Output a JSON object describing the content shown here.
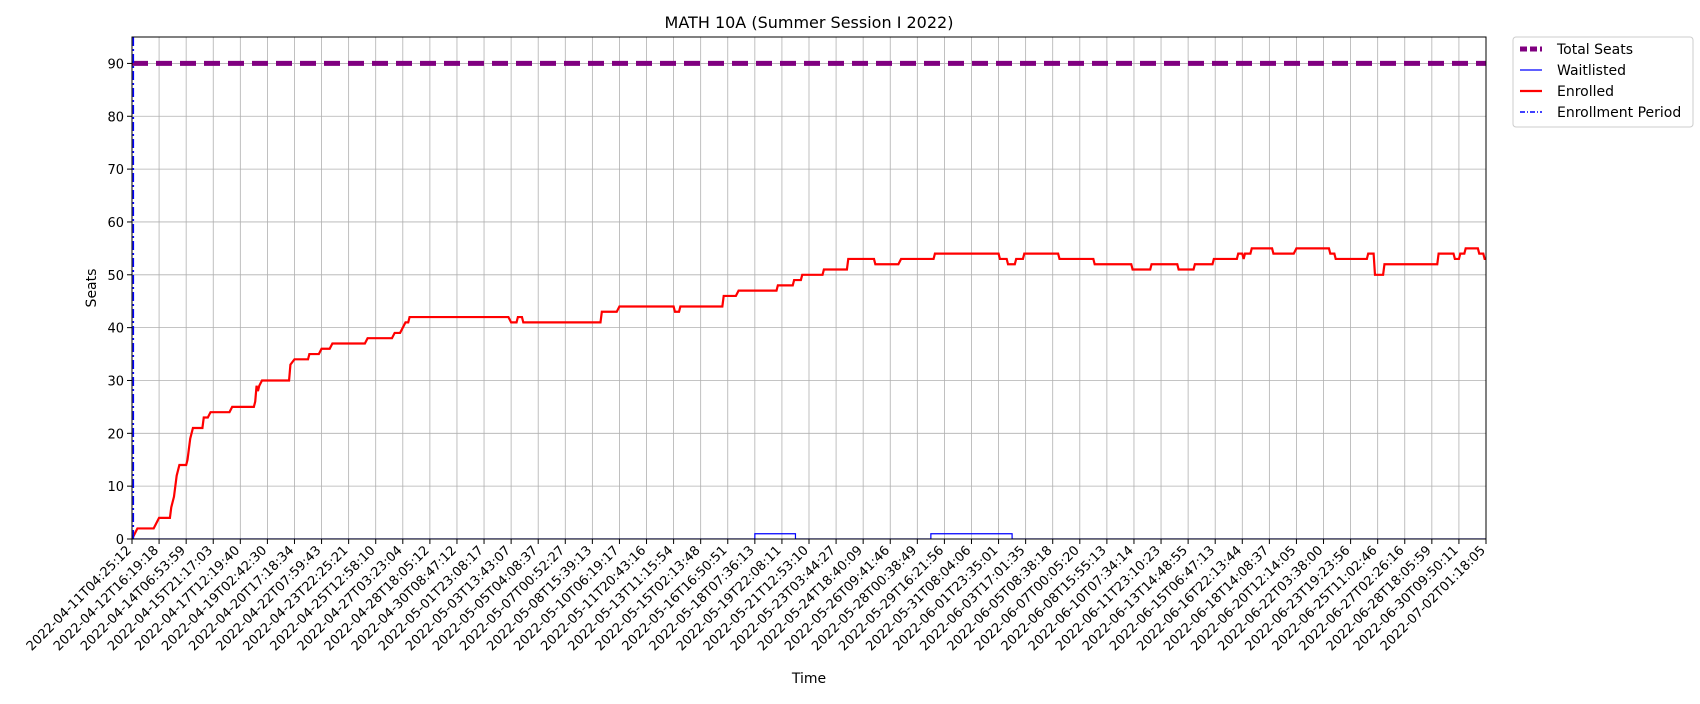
{
  "chart_data": {
    "type": "line",
    "title": "MATH 10A (Summer Session I 2022)",
    "xlabel": "Time",
    "ylabel": "Seats",
    "ylim": [
      0,
      95
    ],
    "yticks": [
      0,
      10,
      20,
      30,
      40,
      50,
      60,
      70,
      80,
      90
    ],
    "grid": true,
    "legend_position": "outside-top-right",
    "x_tick_labels": [
      "2022-04-11T04:25:12",
      "2022-04-12T16:19:18",
      "2022-04-14T06:53:59",
      "2022-04-15T21:17:03",
      "2022-04-17T12:19:40",
      "2022-04-19T02:42:30",
      "2022-04-20T17:18:34",
      "2022-04-22T07:59:43",
      "2022-04-23T22:25:21",
      "2022-04-25T12:58:10",
      "2022-04-27T03:23:04",
      "2022-04-28T18:05:12",
      "2022-04-30T08:47:12",
      "2022-05-01T23:08:17",
      "2022-05-03T13:43:07",
      "2022-05-05T04:08:37",
      "2022-05-07T00:52:27",
      "2022-05-08T15:39:13",
      "2022-05-10T06:19:17",
      "2022-05-11T20:43:16",
      "2022-05-13T11:15:54",
      "2022-05-15T02:13:48",
      "2022-05-16T16:50:51",
      "2022-05-18T07:36:13",
      "2022-05-19T22:08:11",
      "2022-05-21T12:53:10",
      "2022-05-23T03:44:27",
      "2022-05-24T18:40:09",
      "2022-05-26T09:41:46",
      "2022-05-28T00:38:49",
      "2022-05-29T16:21:56",
      "2022-05-31T08:04:06",
      "2022-06-01T23:35:01",
      "2022-06-03T17:01:35",
      "2022-06-05T08:38:18",
      "2022-06-07T00:05:20",
      "2022-06-08T15:55:13",
      "2022-06-10T07:34:14",
      "2022-06-11T23:10:23",
      "2022-06-13T14:48:55",
      "2022-06-15T06:47:13",
      "2022-06-16T22:13:44",
      "2022-06-18T14:08:37",
      "2022-06-20T12:14:05",
      "2022-06-22T03:38:00",
      "2022-06-23T19:23:56",
      "2022-06-25T11:02:46",
      "2022-06-27T02:26:16",
      "2022-06-28T18:05:59",
      "2022-06-30T09:50:11",
      "2022-07-02T01:18:05"
    ],
    "series": [
      {
        "name": "Total Seats",
        "color": "#800080",
        "style": "dashed-thick",
        "points": [
          [
            0,
            90
          ],
          [
            50.0,
            90
          ]
        ]
      },
      {
        "name": "Waitlisted",
        "color": "#0000ff",
        "style": "thin-step",
        "points": [
          [
            0,
            0
          ],
          [
            23.0,
            0
          ],
          [
            23.0,
            1
          ],
          [
            24.5,
            1
          ],
          [
            24.5,
            0
          ],
          [
            29.5,
            0
          ],
          [
            29.5,
            1
          ],
          [
            32.5,
            1
          ],
          [
            32.5,
            0
          ],
          [
            50.0,
            0
          ]
        ]
      },
      {
        "name": "Enrolled",
        "color": "#ff0000",
        "style": "step",
        "points": [
          [
            0.0,
            0
          ],
          [
            0.1,
            1
          ],
          [
            0.2,
            2
          ],
          [
            0.8,
            2
          ],
          [
            0.9,
            3
          ],
          [
            1.0,
            4
          ],
          [
            1.4,
            4
          ],
          [
            1.45,
            6
          ],
          [
            1.5,
            7
          ],
          [
            1.55,
            8
          ],
          [
            1.6,
            10
          ],
          [
            1.65,
            12
          ],
          [
            1.75,
            14
          ],
          [
            2.0,
            14
          ],
          [
            2.05,
            15
          ],
          [
            2.1,
            17
          ],
          [
            2.15,
            19
          ],
          [
            2.25,
            21
          ],
          [
            2.6,
            21
          ],
          [
            2.65,
            23
          ],
          [
            2.8,
            23
          ],
          [
            2.9,
            24
          ],
          [
            3.6,
            24
          ],
          [
            3.7,
            25
          ],
          [
            4.5,
            25
          ],
          [
            4.55,
            26
          ],
          [
            4.6,
            29
          ],
          [
            4.65,
            28
          ],
          [
            4.7,
            29
          ],
          [
            4.8,
            30
          ],
          [
            5.8,
            30
          ],
          [
            5.85,
            33
          ],
          [
            6.0,
            34
          ],
          [
            6.5,
            34
          ],
          [
            6.55,
            35
          ],
          [
            6.9,
            35
          ],
          [
            7.0,
            36
          ],
          [
            7.3,
            36
          ],
          [
            7.4,
            37
          ],
          [
            8.6,
            37
          ],
          [
            8.7,
            38
          ],
          [
            9.6,
            38
          ],
          [
            9.7,
            39
          ],
          [
            9.9,
            39
          ],
          [
            10.0,
            40
          ],
          [
            10.1,
            41
          ],
          [
            10.2,
            41
          ],
          [
            10.25,
            42
          ],
          [
            13.9,
            42
          ],
          [
            14.0,
            41
          ],
          [
            14.2,
            41
          ],
          [
            14.25,
            42
          ],
          [
            14.4,
            42
          ],
          [
            14.45,
            41
          ],
          [
            17.3,
            41
          ],
          [
            17.35,
            43
          ],
          [
            17.9,
            43
          ],
          [
            18.0,
            44
          ],
          [
            20.0,
            44
          ],
          [
            20.05,
            43
          ],
          [
            20.2,
            43
          ],
          [
            20.25,
            44
          ],
          [
            21.8,
            44
          ],
          [
            21.85,
            46
          ],
          [
            22.3,
            46
          ],
          [
            22.4,
            47
          ],
          [
            23.8,
            47
          ],
          [
            23.85,
            48
          ],
          [
            24.4,
            48
          ],
          [
            24.45,
            49
          ],
          [
            24.7,
            49
          ],
          [
            24.75,
            50
          ],
          [
            25.5,
            50
          ],
          [
            25.55,
            51
          ],
          [
            26.4,
            51
          ],
          [
            26.45,
            53
          ],
          [
            27.4,
            53
          ],
          [
            27.45,
            52
          ],
          [
            28.3,
            52
          ],
          [
            28.4,
            53
          ],
          [
            29.6,
            53
          ],
          [
            29.65,
            54
          ],
          [
            32.0,
            54
          ],
          [
            32.05,
            53
          ],
          [
            32.3,
            53
          ],
          [
            32.35,
            52
          ],
          [
            32.6,
            52
          ],
          [
            32.65,
            53
          ],
          [
            32.9,
            53
          ],
          [
            32.95,
            54
          ],
          [
            34.2,
            54
          ],
          [
            34.25,
            53
          ],
          [
            35.5,
            53
          ],
          [
            35.55,
            52
          ],
          [
            36.9,
            52
          ],
          [
            36.95,
            51
          ],
          [
            37.6,
            51
          ],
          [
            37.65,
            52
          ],
          [
            38.6,
            52
          ],
          [
            38.65,
            51
          ],
          [
            39.2,
            51
          ],
          [
            39.25,
            52
          ],
          [
            39.9,
            52
          ],
          [
            39.95,
            53
          ],
          [
            40.8,
            53
          ],
          [
            40.85,
            54
          ],
          [
            41.0,
            54
          ],
          [
            41.05,
            53
          ],
          [
            41.1,
            54
          ],
          [
            41.3,
            54
          ],
          [
            41.35,
            55
          ],
          [
            42.1,
            55
          ],
          [
            42.15,
            54
          ],
          [
            42.9,
            54
          ],
          [
            43.0,
            55
          ],
          [
            44.2,
            55
          ],
          [
            44.25,
            54
          ],
          [
            44.4,
            54
          ],
          [
            44.45,
            53
          ],
          [
            45.6,
            53
          ],
          [
            45.65,
            54
          ],
          [
            45.85,
            54
          ],
          [
            45.9,
            50
          ],
          [
            46.2,
            50
          ],
          [
            46.25,
            52
          ],
          [
            48.2,
            52
          ],
          [
            48.25,
            54
          ],
          [
            48.8,
            54
          ],
          [
            48.85,
            53
          ],
          [
            49.0,
            53
          ],
          [
            49.05,
            54
          ],
          [
            49.2,
            54
          ],
          [
            49.25,
            55
          ],
          [
            49.7,
            55
          ],
          [
            49.75,
            54
          ],
          [
            49.9,
            54
          ],
          [
            49.95,
            53
          ],
          [
            50.3,
            53
          ],
          [
            50.35,
            54
          ],
          [
            50.9,
            54
          ],
          [
            50.95,
            55
          ],
          [
            51.0,
            54
          ],
          [
            51.3,
            54
          ]
        ]
      },
      {
        "name": "Enrollment Period",
        "color": "#0000ff",
        "style": "dash-dot-vertical",
        "points": [
          [
            0.05,
            0
          ],
          [
            0.05,
            95
          ]
        ]
      }
    ]
  }
}
